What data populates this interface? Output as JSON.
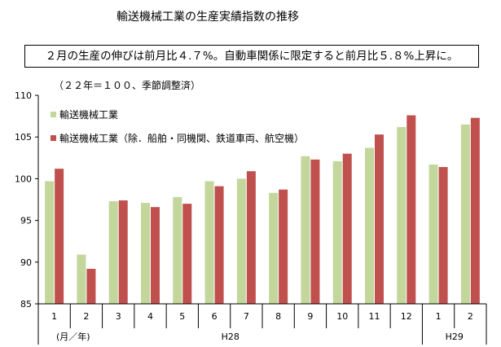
{
  "header": {
    "title": "輸送機械工業の生産実績指数の推移",
    "summary": "２月の生産の伸びは前月比４.７%。自動車関係に限定すると前月比５.８%上昇に。",
    "index_note": "（２２年＝１００、季節調整済）"
  },
  "colors": {
    "series1": "#c3d69b",
    "series2": "#c0504d",
    "axis": "#000000"
  },
  "chart_data": {
    "type": "bar",
    "categories": [
      "1",
      "2",
      "3",
      "4",
      "5",
      "6",
      "7",
      "8",
      "9",
      "10",
      "11",
      "12",
      "1",
      "2"
    ],
    "year_groups": [
      {
        "label": "H28",
        "start": 0,
        "end": 11
      },
      {
        "label": "H29",
        "start": 12,
        "end": 13
      }
    ],
    "unit_label": "(月／年)",
    "y_ticks": [
      85,
      90,
      95,
      100,
      105,
      110
    ],
    "ylim": [
      85,
      110
    ],
    "legend_placement": "top-left",
    "series": [
      {
        "name": "輸送機械工業",
        "values": [
          99.7,
          90.9,
          97.3,
          97.1,
          97.8,
          99.7,
          100.0,
          98.3,
          102.7,
          102.1,
          103.7,
          106.2,
          101.7,
          106.5
        ]
      },
      {
        "name": "輸送機械工業（除．船舶・同機関、鉄道車両、航空機）",
        "values": [
          101.2,
          89.2,
          97.4,
          96.6,
          97.0,
          99.1,
          100.9,
          98.7,
          102.3,
          103.0,
          105.3,
          107.6,
          101.4,
          107.3
        ]
      }
    ]
  }
}
